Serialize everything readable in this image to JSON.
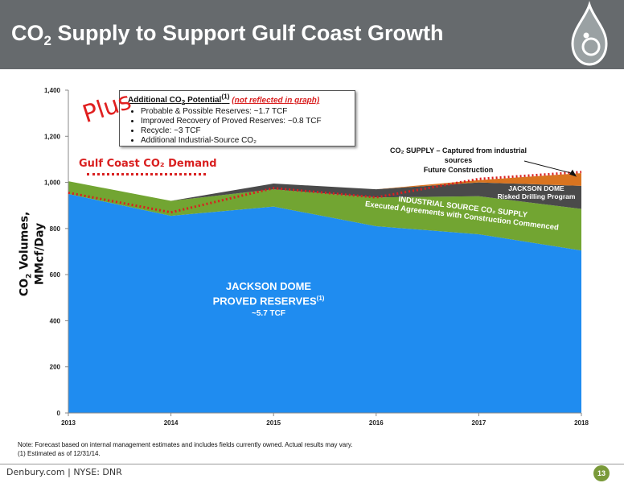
{
  "header": {
    "title_pre": "CO",
    "title_sub": "2",
    "title_post": " Supply to Support Gulf Coast Growth"
  },
  "annotation": {
    "title_pre": "Additional CO",
    "title_sub": "2",
    "title_mid": " Potential",
    "title_sup": "(1)",
    "title_note": "(not reflected in graph)",
    "bullets": [
      "Probable & Possible Reserves: ~1.7 TCF",
      "Improved Recovery of Proved Reserves: ~0.8 TCF",
      "Recycle: ~3 TCF",
      "Additional Industrial-Source CO₂"
    ],
    "plus": "Plus"
  },
  "gulf_demand_label": "Gulf Coast CO₂ Demand",
  "supply_label": {
    "line1": "CO₂ SUPPLY – Captured from industrial sources",
    "line2": "Future Construction"
  },
  "jackson_dome_reserves": {
    "line1": "JACKSON DOME",
    "line2": "PROVED RESERVES",
    "sup": "(1)",
    "tcf": "~5.7 TCF"
  },
  "industrial_label": {
    "line1": "INDUSTRIAL SOURCE CO₂ SUPPLY",
    "line2": "Executed Agreements  with Construction Commenced"
  },
  "risked_label": {
    "line1": "JACKSON DOME",
    "line2": "Risked Drilling Program"
  },
  "ylabel": {
    "pre": "CO",
    "sub": "2",
    "post": " Volumes, MMcf/Day"
  },
  "note": {
    "line1": "Note: Forecast based on internal management estimates and includes fields currently owned.  Actual results may vary.",
    "line2": "(1) Estimated as of 12/31/14."
  },
  "footer": {
    "text": "Denbury.com  |  NYSE: DNR",
    "page": "13"
  },
  "colors": {
    "header": "#666a6d",
    "jackson_dome": "#1f8cf0",
    "industrial": "#72a532",
    "risked": "#4a4a4a",
    "future": "#d97420",
    "demand": "#d92020"
  },
  "chart_data": {
    "type": "area",
    "x": [
      "2013",
      "2014",
      "2015",
      "2016",
      "2017",
      "2018"
    ],
    "ylim": [
      0,
      1400
    ],
    "yticks": [
      "0",
      "200",
      "400",
      "600",
      "800",
      "1,000",
      "1,200",
      "1,400"
    ],
    "ylabel": "CO₂ Volumes, MMcf/Day",
    "stacked": true,
    "series": [
      {
        "name": "JACKSON DOME PROVED RESERVES",
        "values": [
          950,
          855,
          895,
          810,
          775,
          705
        ]
      },
      {
        "name": "INDUSTRIAL SOURCE CO₂ SUPPLY Executed Agreements with Construction Commenced",
        "values": [
          55,
          65,
          75,
          125,
          165,
          180
        ]
      },
      {
        "name": "JACKSON DOME Risked Drilling Program",
        "values": [
          0,
          0,
          25,
          35,
          60,
          100
        ]
      },
      {
        "name": "CO₂ SUPPLY – Captured from industrial sources Future Construction",
        "values": [
          0,
          0,
          0,
          0,
          10,
          55
        ]
      }
    ],
    "demand_line": {
      "name": "Gulf Coast CO₂ Demand",
      "values": [
        955,
        870,
        975,
        935,
        1015,
        1045
      ]
    },
    "grid": false,
    "legend": "none"
  }
}
